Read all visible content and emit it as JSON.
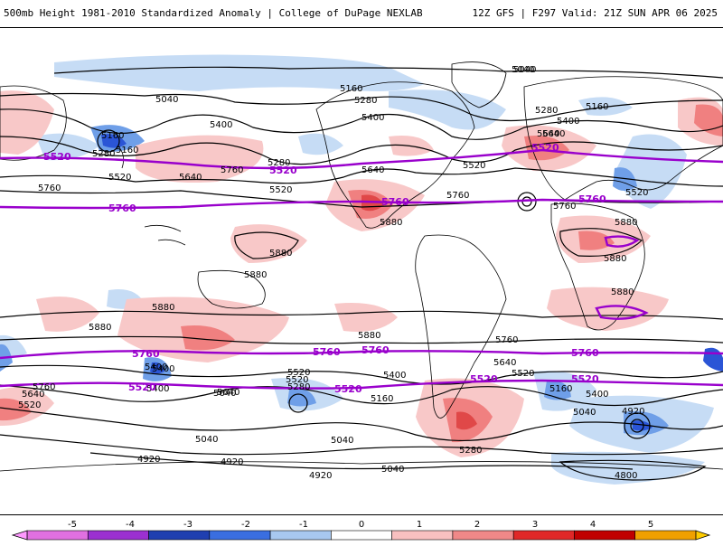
{
  "header": {
    "title_left": "500mb Height 1981-2010 Standardized Anomaly | College of DuPage NEXLAB",
    "title_right": "12Z GFS | F297 Valid: 21Z SUN APR 06 2025"
  },
  "colors": {
    "contour": "#000000",
    "highlight_contour": "#9900cc",
    "neg_light": "#c6dcf5",
    "neg_mid": "#6f9fe8",
    "neg_strong": "#2b55d6",
    "pos_light": "#f8c8c8",
    "pos_mid": "#f08080",
    "pos_strong": "#e04848",
    "land": "#ffffff",
    "coast": "#000000"
  },
  "contour_labels": [
    {
      "text": "5040"
    },
    {
      "text": "5160"
    },
    {
      "text": "5280"
    },
    {
      "text": "5400"
    },
    {
      "text": "5160"
    },
    {
      "text": "5040"
    },
    {
      "text": "5400"
    },
    {
      "text": "5160"
    },
    {
      "text": "5280"
    },
    {
      "text": "5640"
    },
    {
      "text": "5760"
    },
    {
      "text": "5280"
    },
    {
      "text": "5520"
    },
    {
      "text": "5520"
    },
    {
      "text": "5640"
    },
    {
      "text": "5520"
    },
    {
      "text": "5280"
    },
    {
      "text": "5400"
    },
    {
      "text": "5640"
    },
    {
      "text": "5520"
    },
    {
      "text": "5760"
    },
    {
      "text": "5880"
    },
    {
      "text": "5880"
    },
    {
      "text": "5880"
    },
    {
      "text": "5880"
    },
    {
      "text": "5880"
    },
    {
      "text": "5760"
    },
    {
      "text": "5880"
    },
    {
      "text": "5880"
    },
    {
      "text": "5880"
    },
    {
      "text": "5880"
    },
    {
      "text": "5760"
    },
    {
      "text": "5640"
    },
    {
      "text": "5520"
    },
    {
      "text": "5400"
    },
    {
      "text": "5160"
    },
    {
      "text": "5040"
    },
    {
      "text": "5280"
    },
    {
      "text": "5400"
    },
    {
      "text": "5640"
    },
    {
      "text": "5520"
    },
    {
      "text": "5040"
    },
    {
      "text": "4920"
    },
    {
      "text": "4920"
    },
    {
      "text": "4920"
    },
    {
      "text": "5040"
    },
    {
      "text": "4920"
    },
    {
      "text": "4800"
    },
    {
      "text": "5640"
    },
    {
      "text": "5520"
    },
    {
      "text": "5760"
    },
    {
      "text": "5400"
    },
    {
      "text": "5160"
    },
    {
      "text": "5040"
    },
    {
      "text": "5520"
    },
    {
      "text": "5280"
    },
    {
      "text": "5400"
    },
    {
      "text": "5160"
    },
    {
      "text": "5640"
    },
    {
      "text": "5760"
    },
    {
      "text": "5040"
    },
    {
      "text": "5640"
    },
    {
      "text": "5400"
    }
  ],
  "magenta_labels": [
    {
      "text": "5520"
    },
    {
      "text": "5520"
    },
    {
      "text": "5760"
    },
    {
      "text": "5760"
    },
    {
      "text": "5520"
    },
    {
      "text": "5760"
    },
    {
      "text": "5760"
    },
    {
      "text": "5520"
    },
    {
      "text": "5520"
    },
    {
      "text": "5760"
    },
    {
      "text": "5760"
    },
    {
      "text": "5520"
    },
    {
      "text": "5760"
    },
    {
      "text": "5520"
    }
  ],
  "colorbar": {
    "ticks": [
      "-5",
      "-4",
      "-3",
      "-2",
      "-1",
      "0",
      "1",
      "2",
      "3",
      "4",
      "5"
    ],
    "swatches": [
      "#e070e0",
      "#9b30d0",
      "#1f3fb0",
      "#3a6ee0",
      "#a8c8f0",
      "#ffffff",
      "#f8c0c0",
      "#f08888",
      "#e02828",
      "#c00000",
      "#f0a000"
    ]
  }
}
